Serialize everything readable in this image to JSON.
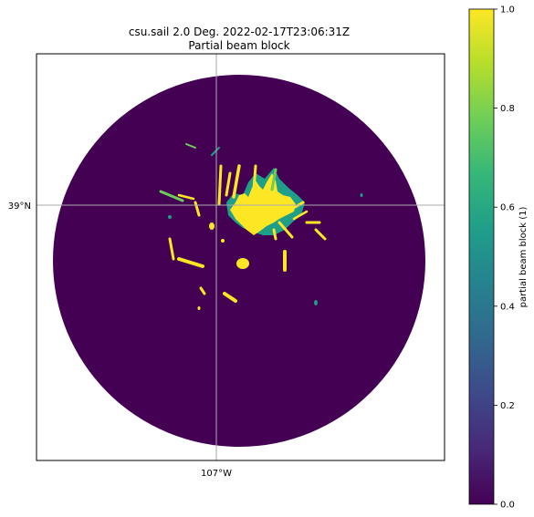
{
  "chart_data": {
    "type": "heatmap",
    "title": "csu.sail 2.0 Deg. 2022-02-17T23:06:31Z",
    "subtitle": "Partial beam block",
    "map": {
      "lat_gridline_label": "39°N",
      "lon_gridline_label": "107°W",
      "gridlines": true,
      "gridline_color": "#aaaaaa",
      "frame_color": "#000000"
    },
    "field": {
      "background_value": 0.0,
      "blocked_value": 1.0,
      "partial_value": 0.5,
      "blocked_region_description": "mountain terrain blockage north of radar"
    },
    "colorbar": {
      "label": "partial beam block (1)",
      "vmin": 0.0,
      "vmax": 1.0,
      "ticks": [
        0.0,
        0.2,
        0.4,
        0.6,
        0.8,
        1.0
      ],
      "tick_labels": [
        "0.0",
        "0.2",
        "0.4",
        "0.6",
        "0.8",
        "1.0"
      ],
      "colormap": "viridis",
      "colors": [
        "#440154",
        "#482878",
        "#3e4989",
        "#31688e",
        "#26828e",
        "#1f9e89",
        "#35b779",
        "#6ece58",
        "#b5de2b",
        "#fde725"
      ]
    }
  }
}
